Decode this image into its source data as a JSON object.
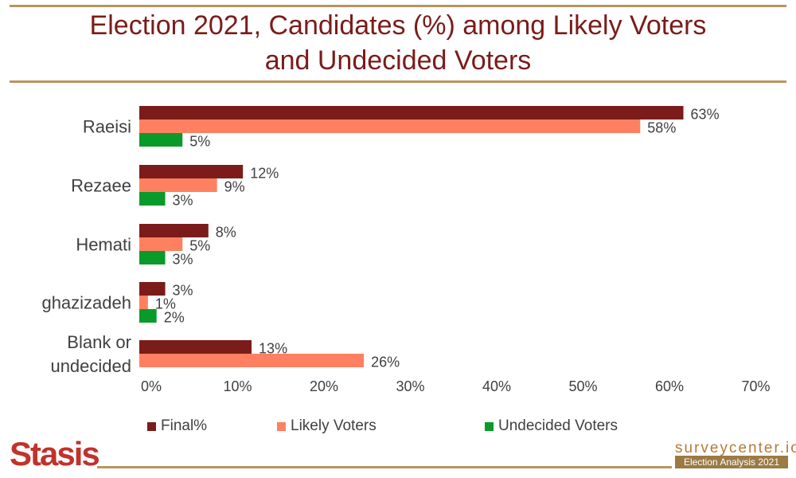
{
  "title_line1": "Election 2021, Candidates (%) among Likely Voters",
  "title_line2": "and Undecided Voters",
  "colors": {
    "rule": "#b89560",
    "title": "#7a1c1a"
  },
  "chart_data": {
    "type": "bar",
    "orientation": "horizontal",
    "categories": [
      "Raeisi",
      "Rezaee",
      "Hemati",
      "ghazizadeh",
      "Blank or undecided"
    ],
    "series": [
      {
        "name": "Final%",
        "color": "#7b1c1a",
        "values": [
          63,
          12,
          8,
          3,
          13
        ],
        "labels": [
          "63%",
          "12%",
          "8%",
          "3%",
          "13%"
        ]
      },
      {
        "name": "Likely Voters",
        "color": "#ff8060",
        "values": [
          58,
          9,
          5,
          1,
          26
        ],
        "labels": [
          "58%",
          "9%",
          "5%",
          "1%",
          "26%"
        ]
      },
      {
        "name": "Undecided Voters",
        "color": "#0a9a2a",
        "values": [
          5,
          3,
          3,
          2,
          null
        ],
        "labels": [
          "5%",
          "3%",
          "3%",
          "2%",
          ""
        ]
      }
    ],
    "xlim": [
      0,
      70
    ],
    "xticks": [
      0,
      10,
      20,
      30,
      40,
      50,
      60,
      70
    ],
    "xtick_labels": [
      "0%",
      "10%",
      "20%",
      "30%",
      "40%",
      "50%",
      "60%",
      "70%"
    ],
    "grid": false,
    "legend_position": "bottom"
  },
  "footer": {
    "logo": "Stasis",
    "brand": "surveycenter.io",
    "subtitle": "Election Analysis 2021"
  }
}
